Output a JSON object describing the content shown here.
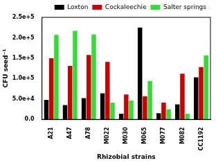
{
  "chart_data": {
    "type": "bar",
    "x_label": "Rhizobial strains",
    "y_label": "CFU seed⁻¹",
    "categories": [
      "A21",
      "A47",
      "A78",
      "M022",
      "M030",
      "M065",
      "M077",
      "M082",
      "CC1192"
    ],
    "series": [
      {
        "name": "Loxton",
        "color": "#000000",
        "values": [
          48000,
          35000,
          52000,
          64000,
          14000,
          225000,
          15000,
          37000,
          103000
        ]
      },
      {
        "name": "Cockaleechie",
        "color": "#cc0000",
        "values": [
          150000,
          131000,
          158000,
          141000,
          61000,
          57000,
          41000,
          112000,
          128000
        ]
      },
      {
        "name": "Salter springs",
        "color": "#33dd33",
        "values": [
          207000,
          217000,
          208000,
          41000,
          46000,
          94000,
          25000,
          14000,
          157000
        ]
      }
    ],
    "ylim": [
      0,
      250000
    ],
    "yticks": [
      {
        "value": 0,
        "label": "0.0"
      },
      {
        "value": 50000,
        "label": "5.0e+4"
      },
      {
        "value": 100000,
        "label": "1.0e+5"
      },
      {
        "value": 150000,
        "label": "1.5e+5"
      },
      {
        "value": 200000,
        "label": "2.0e+5"
      },
      {
        "value": 250000,
        "label": "2.5e+5"
      }
    ],
    "grid": false,
    "legend": "upper right"
  }
}
